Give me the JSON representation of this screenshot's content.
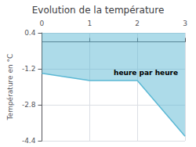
{
  "chart_data": {
    "type": "area",
    "title": "Evolution de la température",
    "ylabel": "Température en °C",
    "annotation": "heure par heure",
    "x": [
      0,
      1,
      2,
      3
    ],
    "values": [
      -1.4,
      -1.72,
      -1.72,
      -4.2
    ],
    "color": "#5bb8d4",
    "xlim": [
      0,
      3
    ],
    "xticks": [
      0,
      1,
      2,
      3
    ],
    "ylim": [
      -4.4,
      0.4
    ],
    "yticks": [
      0.4,
      -1.2,
      -2.8,
      -4.4
    ],
    "grid": true
  }
}
